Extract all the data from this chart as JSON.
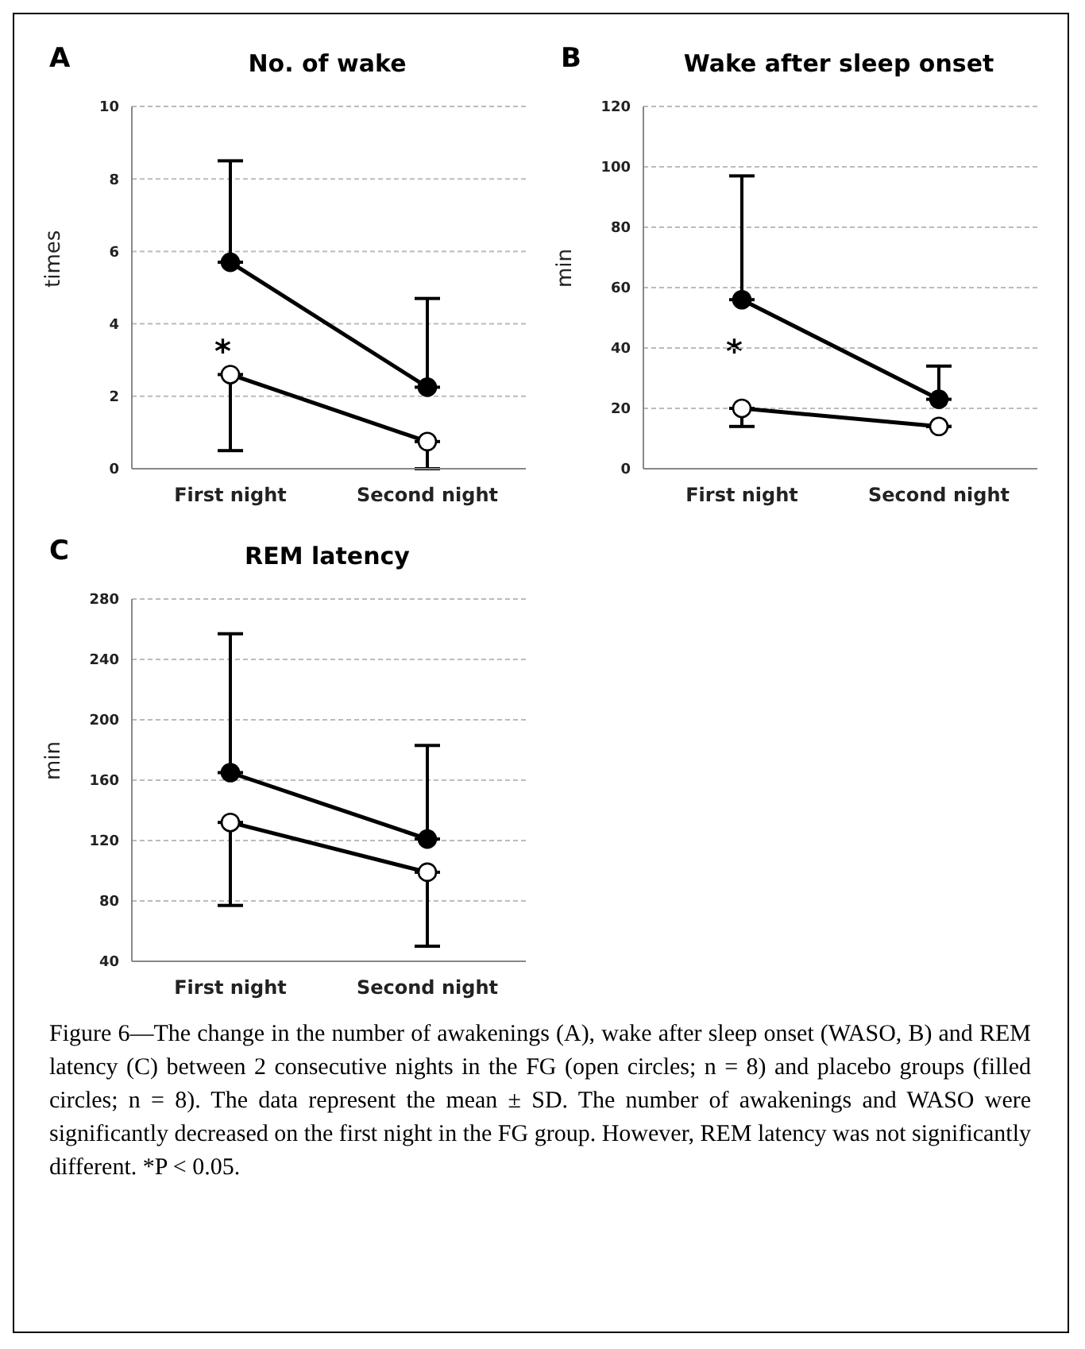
{
  "chart_data": [
    {
      "type": "line",
      "title": "No. of wake",
      "ylabel": "times",
      "categories": [
        "First night",
        "Second night"
      ],
      "ylim": [
        0,
        10
      ],
      "yticks": [
        0,
        2,
        4,
        6,
        8,
        10
      ],
      "grid": "y",
      "marker": "circle",
      "legend": false,
      "series": [
        {
          "color": "#000000",
          "values": [
            5.7,
            2.25
          ],
          "errors": [
            [
              5.7,
              8.5
            ],
            [
              2.25,
              4.7
            ]
          ]
        },
        {
          "color": "#ffffff",
          "values": [
            2.6,
            0.75
          ],
          "errors": [
            [
              0.5,
              2.6
            ],
            [
              0,
              0.75
            ]
          ]
        }
      ],
      "annotations": [
        "A",
        "*"
      ]
    },
    {
      "type": "line",
      "title": "Wake after sleep onset",
      "ylabel": "min",
      "categories": [
        "First night",
        "Second night"
      ],
      "ylim": [
        0,
        120
      ],
      "yticks": [
        0,
        20,
        40,
        60,
        80,
        100,
        120
      ],
      "grid": "y",
      "marker": "circle",
      "legend": false,
      "series": [
        {
          "color": "#000000",
          "values": [
            56,
            23
          ],
          "errors": [
            [
              56,
              97
            ],
            [
              23,
              34
            ]
          ]
        },
        {
          "color": "#ffffff",
          "values": [
            20,
            14
          ],
          "errors": [
            [
              14,
              20
            ],
            null
          ]
        }
      ],
      "annotations": [
        "B",
        "*"
      ]
    },
    {
      "type": "line",
      "title": "REM latency",
      "ylabel": "min",
      "categories": [
        "First night",
        "Second night"
      ],
      "ylim": [
        40,
        280
      ],
      "yticks": [
        40,
        80,
        120,
        160,
        200,
        240,
        280
      ],
      "grid": "y",
      "marker": "circle",
      "legend": false,
      "series": [
        {
          "color": "#000000",
          "values": [
            165,
            121
          ],
          "errors": [
            [
              165,
              257
            ],
            [
              121,
              183
            ]
          ]
        },
        {
          "color": "#ffffff",
          "values": [
            132,
            99
          ],
          "errors": [
            [
              77,
              132
            ],
            [
              50,
              99
            ]
          ]
        }
      ],
      "annotations": [
        "C"
      ]
    },
    {
      "type": "other",
      "annotations": [
        "Figure 6—The change in the number of awakenings (A), wake after sleep onset (WASO, B) and REM latency (C) between 2 consecutive nights in the FG (open circles; n = 8) and placebo groups (filled circles; n = 8). The data represent the mean ± SD. The number of awakenings and WASO were significantly decreased on the first night in the FG group. However, REM latency was not significantly different. *P < 0.05."
      ]
    }
  ]
}
